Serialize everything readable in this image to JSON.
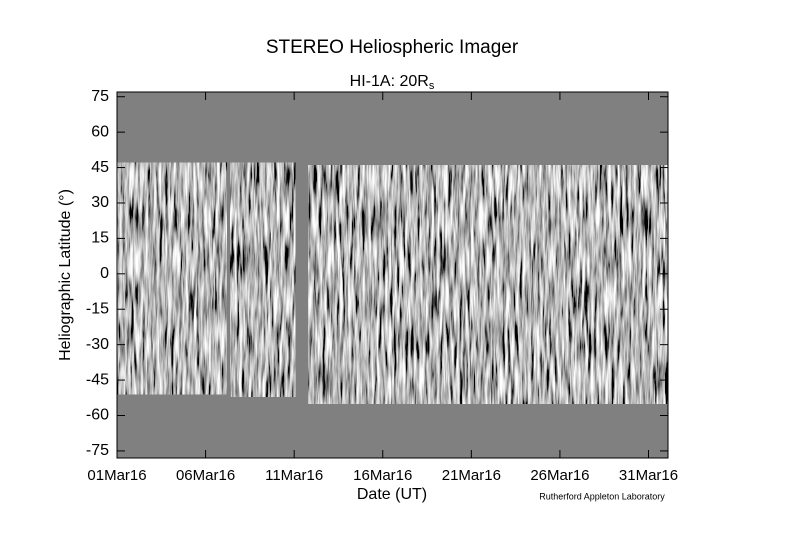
{
  "chart_data": {
    "type": "jmap",
    "title": "STEREO Heliospheric Imager",
    "subtitle": "HI-1A: 20R",
    "subtitle_subscript": "s",
    "x_label": "Date (UT)",
    "y_label": "Heliographic Latitude (°)",
    "credit": "Rutherford Appleton Laboratory",
    "xlim": [
      1,
      32.1
    ],
    "ylim": [
      -78,
      77
    ],
    "xticks": [
      {
        "value": 1,
        "label": "01Mar16"
      },
      {
        "value": 6,
        "label": "06Mar16"
      },
      {
        "value": 11,
        "label": "11Mar16"
      },
      {
        "value": 16,
        "label": "16Mar16"
      },
      {
        "value": 21,
        "label": "21Mar16"
      },
      {
        "value": 26,
        "label": "26Mar16"
      },
      {
        "value": 31,
        "label": "31Mar16"
      }
    ],
    "yticks": [
      75,
      60,
      45,
      30,
      15,
      0,
      -15,
      -30,
      -45,
      -60,
      -75
    ],
    "background_color": "#808080",
    "segments": [
      {
        "start": 1,
        "end": 7.2,
        "top": 47,
        "bottom": -51
      },
      {
        "start": 7.4,
        "end": 11.05,
        "top": 47,
        "bottom": -52
      },
      {
        "start": 11.8,
        "end": 32.1,
        "top": 46,
        "bottom": -55
      }
    ]
  }
}
